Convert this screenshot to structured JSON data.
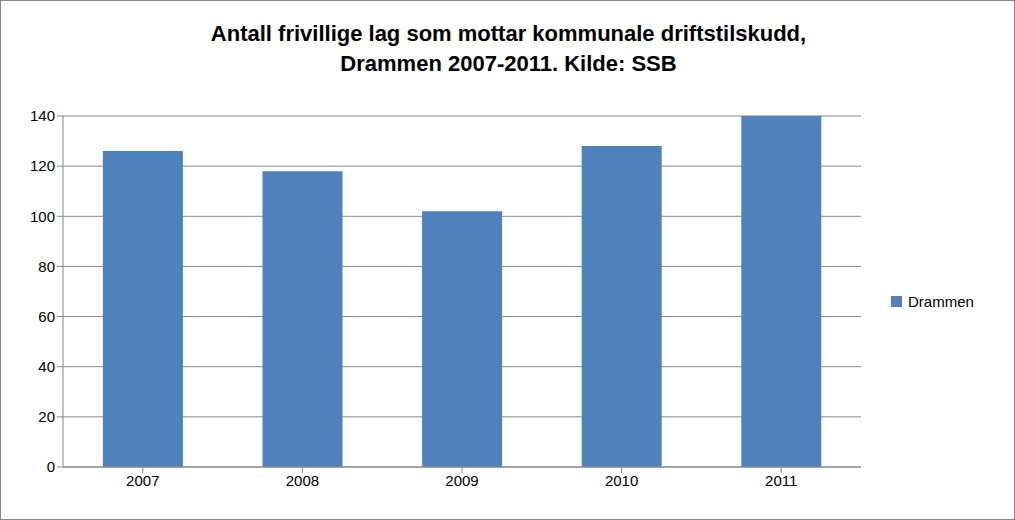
{
  "chart_data": {
    "type": "bar",
    "title": "Antall frivillige lag som mottar kommunale driftstilskudd, Drammen 2007-2011. Kilde: SSB",
    "categories": [
      "2007",
      "2008",
      "2009",
      "2010",
      "2011"
    ],
    "series": [
      {
        "name": "Drammen",
        "color": "#4f81bd",
        "values": [
          126,
          118,
          102,
          128,
          140
        ]
      }
    ],
    "ylim": [
      0,
      140
    ],
    "yticks": [
      0,
      20,
      40,
      60,
      80,
      100,
      120,
      140
    ],
    "grid": true,
    "legend": "right"
  }
}
